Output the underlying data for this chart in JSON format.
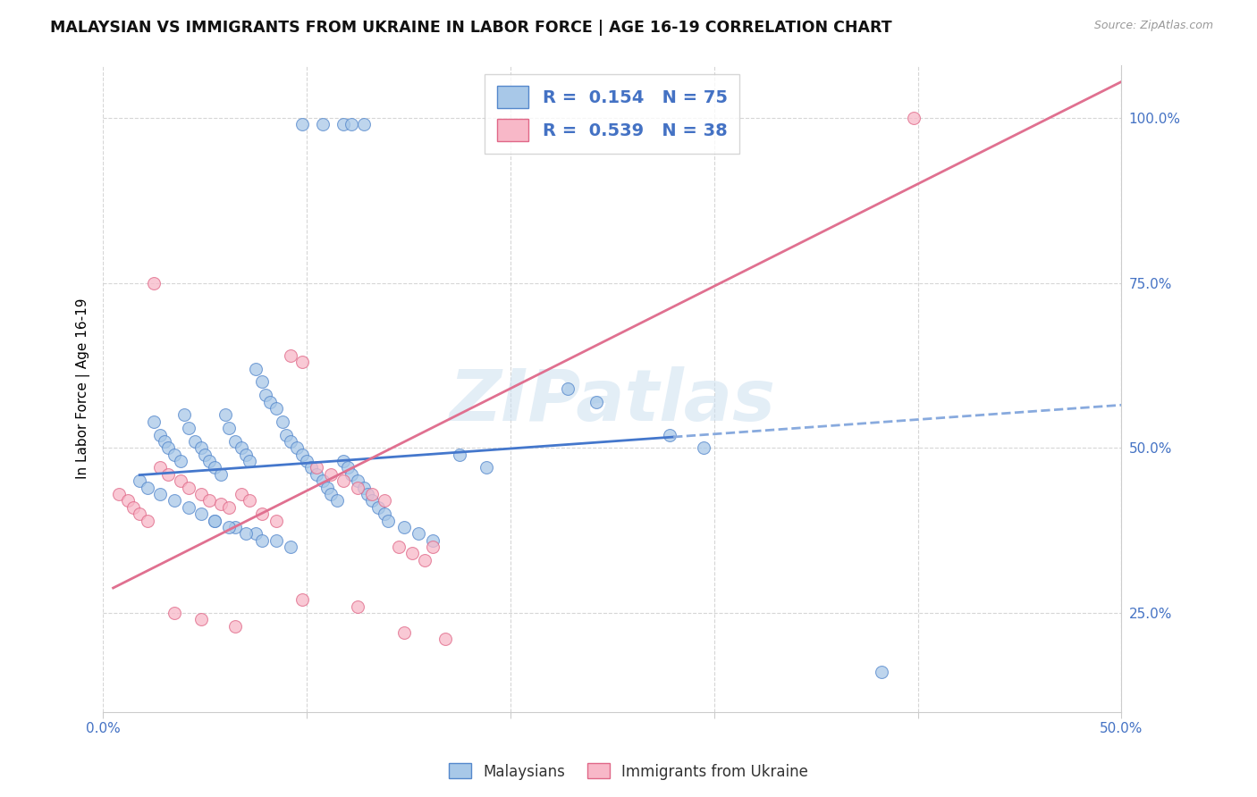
{
  "title": "MALAYSIAN VS IMMIGRANTS FROM UKRAINE IN LABOR FORCE | AGE 16-19 CORRELATION CHART",
  "source": "Source: ZipAtlas.com",
  "ylabel": "In Labor Force | Age 16-19",
  "xlim": [
    0.0,
    0.5
  ],
  "ylim": [
    0.1,
    1.08
  ],
  "y_ticks_right": [
    0.25,
    0.5,
    0.75,
    1.0
  ],
  "blue_color": "#a8c8e8",
  "blue_edge": "#5588cc",
  "pink_color": "#f8b8c8",
  "pink_edge": "#e06888",
  "line_blue_solid": "#4477cc",
  "line_blue_dash": "#88aade",
  "line_pink": "#e07090",
  "grid_color": "#cccccc",
  "watermark": "ZIPatlas",
  "blue_scatter_x": [
    0.118,
    0.122,
    0.128,
    0.098,
    0.108,
    0.025,
    0.028,
    0.03,
    0.032,
    0.035,
    0.038,
    0.04,
    0.042,
    0.045,
    0.048,
    0.05,
    0.052,
    0.055,
    0.058,
    0.06,
    0.062,
    0.065,
    0.068,
    0.07,
    0.072,
    0.075,
    0.078,
    0.08,
    0.082,
    0.085,
    0.088,
    0.09,
    0.092,
    0.095,
    0.098,
    0.1,
    0.102,
    0.105,
    0.108,
    0.11,
    0.112,
    0.115,
    0.118,
    0.12,
    0.122,
    0.125,
    0.128,
    0.13,
    0.132,
    0.135,
    0.138,
    0.14,
    0.148,
    0.155,
    0.162,
    0.175,
    0.188,
    0.228,
    0.242,
    0.278,
    0.295,
    0.382,
    0.055,
    0.065,
    0.075,
    0.085,
    0.092,
    0.018,
    0.022,
    0.028,
    0.035,
    0.042,
    0.048,
    0.055,
    0.062,
    0.07,
    0.078
  ],
  "blue_scatter_y": [
    0.99,
    0.99,
    0.99,
    0.99,
    0.99,
    0.54,
    0.52,
    0.51,
    0.5,
    0.49,
    0.48,
    0.55,
    0.53,
    0.51,
    0.5,
    0.49,
    0.48,
    0.47,
    0.46,
    0.55,
    0.53,
    0.51,
    0.5,
    0.49,
    0.48,
    0.62,
    0.6,
    0.58,
    0.57,
    0.56,
    0.54,
    0.52,
    0.51,
    0.5,
    0.49,
    0.48,
    0.47,
    0.46,
    0.45,
    0.44,
    0.43,
    0.42,
    0.48,
    0.47,
    0.46,
    0.45,
    0.44,
    0.43,
    0.42,
    0.41,
    0.4,
    0.39,
    0.38,
    0.37,
    0.36,
    0.49,
    0.47,
    0.59,
    0.57,
    0.52,
    0.5,
    0.16,
    0.39,
    0.38,
    0.37,
    0.36,
    0.35,
    0.45,
    0.44,
    0.43,
    0.42,
    0.41,
    0.4,
    0.39,
    0.38,
    0.37,
    0.36
  ],
  "pink_scatter_x": [
    0.008,
    0.012,
    0.015,
    0.018,
    0.022,
    0.028,
    0.032,
    0.038,
    0.042,
    0.048,
    0.052,
    0.058,
    0.062,
    0.068,
    0.072,
    0.078,
    0.085,
    0.092,
    0.098,
    0.105,
    0.112,
    0.118,
    0.125,
    0.132,
    0.138,
    0.145,
    0.152,
    0.158,
    0.162,
    0.025,
    0.035,
    0.048,
    0.065,
    0.098,
    0.125,
    0.148,
    0.168,
    0.398
  ],
  "pink_scatter_y": [
    0.43,
    0.42,
    0.41,
    0.4,
    0.39,
    0.47,
    0.46,
    0.45,
    0.44,
    0.43,
    0.42,
    0.415,
    0.41,
    0.43,
    0.42,
    0.4,
    0.39,
    0.64,
    0.63,
    0.47,
    0.46,
    0.45,
    0.44,
    0.43,
    0.42,
    0.35,
    0.34,
    0.33,
    0.35,
    0.75,
    0.25,
    0.24,
    0.23,
    0.27,
    0.26,
    0.22,
    0.21,
    1.0
  ],
  "blue_trend_x": [
    0.018,
    0.402
  ],
  "blue_trend_x_solid_end": 0.28,
  "blue_trend_y_intercept": 0.455,
  "blue_trend_slope": 0.22,
  "pink_trend_x": [
    0.005,
    0.5
  ],
  "pink_trend_y_intercept": 0.28,
  "pink_trend_slope": 1.55
}
